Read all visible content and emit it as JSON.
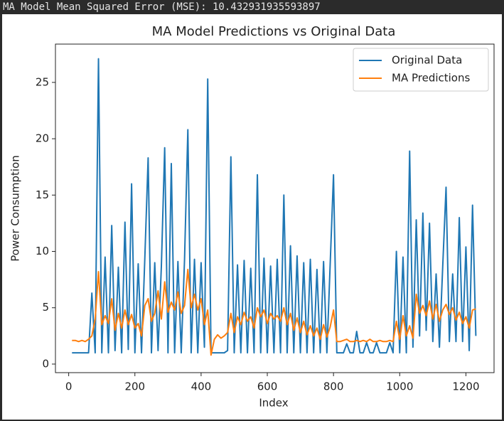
{
  "output": {
    "text": "MA Model Mean Squared Error (MSE): 10.432931935593897"
  },
  "chart_data": {
    "type": "line",
    "title": "MA Model Predictions vs Original Data",
    "x_label": "Index",
    "y_label": "Power Consumption",
    "x": [
      10,
      20,
      30,
      40,
      50,
      60,
      70,
      80,
      90,
      100,
      110,
      120,
      130,
      140,
      150,
      160,
      170,
      180,
      190,
      200,
      210,
      220,
      230,
      240,
      250,
      260,
      270,
      280,
      290,
      300,
      310,
      320,
      330,
      340,
      350,
      360,
      370,
      380,
      390,
      400,
      410,
      420,
      430,
      440,
      450,
      460,
      470,
      480,
      490,
      500,
      510,
      520,
      530,
      540,
      550,
      560,
      570,
      580,
      590,
      600,
      610,
      620,
      630,
      640,
      650,
      660,
      670,
      680,
      690,
      700,
      710,
      720,
      730,
      740,
      750,
      760,
      770,
      780,
      790,
      800,
      810,
      820,
      830,
      840,
      850,
      860,
      870,
      880,
      890,
      900,
      910,
      920,
      930,
      940,
      950,
      960,
      970,
      980,
      990,
      1000,
      1010,
      1020,
      1030,
      1040,
      1050,
      1060,
      1070,
      1080,
      1090,
      1100,
      1110,
      1120,
      1130,
      1140,
      1150,
      1160,
      1170,
      1180,
      1190,
      1200,
      1210,
      1220,
      1230
    ],
    "series": [
      {
        "name": "Original Data",
        "color": "#1f77b4",
        "values": [
          1,
          1,
          1,
          1,
          1,
          1,
          6.3,
          1,
          27.1,
          1,
          9.5,
          1,
          12.3,
          1.2,
          8.6,
          1,
          12.6,
          1.3,
          16,
          1,
          8.9,
          1,
          9.4,
          18.3,
          1,
          9,
          1.2,
          8.7,
          19.2,
          1,
          17.8,
          1,
          9.1,
          1,
          9.3,
          20.8,
          1,
          9.3,
          1,
          9,
          1.5,
          25.3,
          1,
          1,
          1,
          1,
          1,
          1.2,
          18.4,
          1,
          8.8,
          1,
          9.2,
          1,
          8.5,
          1,
          16.8,
          1,
          9.4,
          1,
          8.7,
          1,
          9.3,
          1,
          15,
          1,
          10.5,
          1,
          9.6,
          1,
          9,
          1,
          9.3,
          1,
          8.4,
          1,
          9.1,
          1,
          8.9,
          16.8,
          1,
          1,
          1,
          1.8,
          1,
          1,
          2.9,
          1,
          1,
          1.9,
          1,
          1,
          1.9,
          1,
          1,
          1,
          1.9,
          1,
          10,
          1,
          9.5,
          1,
          18.9,
          1.5,
          12.8,
          2.5,
          13.4,
          3,
          12.5,
          2,
          8,
          1.5,
          8.7,
          15.7,
          2,
          8,
          2,
          13,
          2,
          10.4,
          1.2,
          14.1,
          2.5
        ]
      },
      {
        "name": "MA Predictions",
        "color": "#ff7f0e",
        "values": [
          2.1,
          2.1,
          2,
          2.1,
          2,
          2.2,
          2.5,
          4,
          8.2,
          3.5,
          4.3,
          3.6,
          5.8,
          3,
          4.5,
          3.2,
          4.8,
          3.5,
          4.4,
          3.2,
          3.6,
          2.5,
          5.2,
          5.8,
          3.8,
          4.5,
          6.5,
          4,
          7.3,
          4.6,
          5.5,
          4.8,
          6.4,
          4.5,
          5.2,
          8.4,
          5,
          6.2,
          4.8,
          5.8,
          3.5,
          4.8,
          0.8,
          2.2,
          2.6,
          2.3,
          2.5,
          2.8,
          4.5,
          2.8,
          4.2,
          3.5,
          4.6,
          3.8,
          4.2,
          3.2,
          5,
          4.2,
          4.8,
          3.6,
          4.5,
          4,
          4.3,
          3.8,
          5,
          3.5,
          4.5,
          3,
          4.1,
          2.8,
          3.8,
          2.6,
          3.4,
          2.5,
          3.2,
          2.2,
          3.5,
          2.4,
          3.3,
          4.8,
          2,
          2,
          2.1,
          2.2,
          2,
          2,
          2.1,
          2,
          2.1,
          2,
          2.2,
          2,
          2,
          2.1,
          2,
          2,
          2.1,
          2,
          3.8,
          2.2,
          4.3,
          2.5,
          3.4,
          2.3,
          6.2,
          4.5,
          5.2,
          4.3,
          5.6,
          4,
          5.3,
          3.8,
          4.8,
          5.3,
          4.4,
          5,
          3.9,
          4.6,
          3.6,
          4.2,
          3.2,
          4.8,
          4.9
        ]
      }
    ],
    "xlim": [
      -40,
      1285
    ],
    "ylim": [
      -0.76,
      28.4
    ],
    "xticks": [
      0,
      200,
      400,
      600,
      800,
      1000,
      1200
    ],
    "yticks": [
      0,
      5,
      10,
      15,
      20,
      25
    ],
    "legend": "upper right",
    "grid": false
  }
}
